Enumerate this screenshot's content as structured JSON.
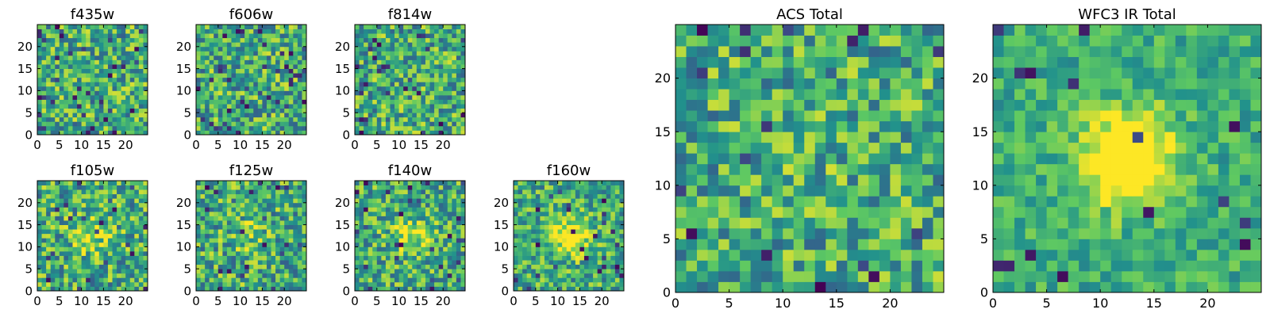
{
  "figure": {
    "colormap": "viridis",
    "colormap_stops": [
      "#440154",
      "#3b528b",
      "#21918c",
      "#5ec962",
      "#fde725"
    ]
  },
  "chart_data": [
    {
      "id": "f435w",
      "type": "heatmap",
      "title": "f435w",
      "grid": false,
      "xlim": [
        0,
        25
      ],
      "ylim": [
        0,
        25
      ],
      "xticks": [
        0,
        5,
        10,
        15,
        20
      ],
      "yticks": [
        0,
        5,
        10,
        15,
        20
      ],
      "pixels": [
        25,
        25
      ],
      "center_peak": 0.0,
      "noise": 0.32,
      "dark_fraction": 0.05,
      "seed": 11
    },
    {
      "id": "f606w",
      "type": "heatmap",
      "title": "f606w",
      "grid": false,
      "xlim": [
        0,
        25
      ],
      "ylim": [
        0,
        25
      ],
      "xticks": [
        0,
        5,
        10,
        15,
        20
      ],
      "yticks": [
        0,
        5,
        10,
        15,
        20
      ],
      "pixels": [
        25,
        25
      ],
      "center_peak": 0.0,
      "noise": 0.32,
      "dark_fraction": 0.05,
      "seed": 23
    },
    {
      "id": "f814w",
      "type": "heatmap",
      "title": "f814w",
      "grid": false,
      "xlim": [
        0,
        25
      ],
      "ylim": [
        0,
        25
      ],
      "xticks": [
        0,
        5,
        10,
        15,
        20
      ],
      "yticks": [
        0,
        5,
        10,
        15,
        20
      ],
      "pixels": [
        25,
        25
      ],
      "center_peak": 0.0,
      "noise": 0.32,
      "dark_fraction": 0.05,
      "seed": 37
    },
    {
      "id": "f105w",
      "type": "heatmap",
      "title": "f105w",
      "grid": false,
      "xlim": [
        0,
        25
      ],
      "ylim": [
        0,
        25
      ],
      "xticks": [
        0,
        5,
        10,
        15,
        20
      ],
      "yticks": [
        0,
        5,
        10,
        15,
        20
      ],
      "pixels": [
        25,
        25
      ],
      "center_peak": 0.25,
      "noise": 0.32,
      "dark_fraction": 0.04,
      "seed": 41
    },
    {
      "id": "f125w",
      "type": "heatmap",
      "title": "f125w",
      "grid": false,
      "xlim": [
        0,
        25
      ],
      "ylim": [
        0,
        25
      ],
      "xticks": [
        0,
        5,
        10,
        15,
        20
      ],
      "yticks": [
        0,
        5,
        10,
        15,
        20
      ],
      "pixels": [
        25,
        25
      ],
      "center_peak": 0.15,
      "noise": 0.32,
      "dark_fraction": 0.04,
      "seed": 53
    },
    {
      "id": "f140w",
      "type": "heatmap",
      "title": "f140w",
      "grid": false,
      "xlim": [
        0,
        25
      ],
      "ylim": [
        0,
        25
      ],
      "xticks": [
        0,
        5,
        10,
        15,
        20
      ],
      "yticks": [
        0,
        5,
        10,
        15,
        20
      ],
      "pixels": [
        25,
        25
      ],
      "center_peak": 0.3,
      "noise": 0.3,
      "dark_fraction": 0.04,
      "seed": 67
    },
    {
      "id": "f160w",
      "type": "heatmap",
      "title": "f160w",
      "grid": false,
      "xlim": [
        0,
        25
      ],
      "ylim": [
        0,
        25
      ],
      "xticks": [
        0,
        5,
        10,
        15,
        20
      ],
      "yticks": [
        0,
        5,
        10,
        15,
        20
      ],
      "pixels": [
        25,
        25
      ],
      "center_peak": 0.45,
      "noise": 0.28,
      "dark_fraction": 0.04,
      "seed": 79
    },
    {
      "id": "acs-total",
      "type": "heatmap",
      "title": "ACS Total",
      "grid": false,
      "xlim": [
        0,
        25
      ],
      "ylim": [
        0,
        25
      ],
      "xticks": [
        0,
        5,
        10,
        15,
        20
      ],
      "yticks": [
        0,
        5,
        10,
        15,
        20
      ],
      "pixels": [
        25,
        25
      ],
      "center_peak": 0.05,
      "noise": 0.3,
      "dark_fraction": 0.035,
      "seed": 97
    },
    {
      "id": "wfc3-ir-total",
      "type": "heatmap",
      "title": "WFC3 IR Total",
      "grid": false,
      "xlim": [
        0,
        25
      ],
      "ylim": [
        0,
        25
      ],
      "xticks": [
        0,
        5,
        10,
        15,
        20
      ],
      "yticks": [
        0,
        5,
        10,
        15,
        20
      ],
      "pixels": [
        25,
        25
      ],
      "center_peak": 0.7,
      "noise": 0.18,
      "dark_fraction": 0.02,
      "seed": 113
    }
  ]
}
